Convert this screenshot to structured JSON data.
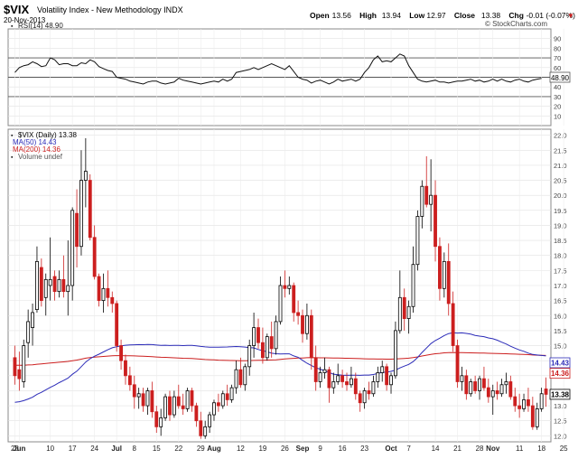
{
  "header": {
    "symbol": "$VIX",
    "description": "Volatility Index - New Methodology  INDX",
    "date": "20-Nov-2013",
    "ohlc": [
      {
        "label": "Open",
        "value": "13.56"
      },
      {
        "label": "High",
        "value": "13.94"
      },
      {
        "label": "Low",
        "value": "12.97"
      },
      {
        "label": "Close",
        "value": "13.38"
      },
      {
        "label": "Chg",
        "value": "-0.01 (-0.07%)"
      }
    ],
    "brand": "© StockCharts.com",
    "down_marker": "▼"
  },
  "rsi_panel": {
    "legend": "RSI(14) 48.90",
    "last_value_label": "48.90"
  },
  "price_panel": {
    "legend": [
      {
        "text": "$VIX (Daily) 13.38",
        "color": "#000000"
      },
      {
        "text": "MA(50) 14.43",
        "color": "#2b2bb8"
      },
      {
        "text": "MA(200) 14.36",
        "color": "#cc1f1f"
      },
      {
        "text": "Volume undef",
        "color": "#555555"
      }
    ],
    "last_close_label": "13.38",
    "ma50_label": "14.43",
    "ma200_label": "14.36"
  },
  "x_ticks": [
    {
      "i": 0,
      "label": "28",
      "bold": false
    },
    {
      "i": 1,
      "label": "Jun",
      "bold": true
    },
    {
      "i": 8,
      "label": "10",
      "bold": false
    },
    {
      "i": 13,
      "label": "17",
      "bold": false
    },
    {
      "i": 18,
      "label": "24",
      "bold": false
    },
    {
      "i": 23,
      "label": "Jul",
      "bold": true
    },
    {
      "i": 27,
      "label": "8",
      "bold": false
    },
    {
      "i": 32,
      "label": "15",
      "bold": false
    },
    {
      "i": 37,
      "label": "22",
      "bold": false
    },
    {
      "i": 42,
      "label": "29",
      "bold": false
    },
    {
      "i": 45,
      "label": "Aug",
      "bold": true
    },
    {
      "i": 51,
      "label": "12",
      "bold": false
    },
    {
      "i": 56,
      "label": "19",
      "bold": false
    },
    {
      "i": 61,
      "label": "26",
      "bold": false
    },
    {
      "i": 65,
      "label": "Sep",
      "bold": true
    },
    {
      "i": 69,
      "label": "9",
      "bold": false
    },
    {
      "i": 74,
      "label": "16",
      "bold": false
    },
    {
      "i": 79,
      "label": "23",
      "bold": false
    },
    {
      "i": 85,
      "label": "Oct",
      "bold": true
    },
    {
      "i": 89,
      "label": "7",
      "bold": false
    },
    {
      "i": 95,
      "label": "14",
      "bold": false
    },
    {
      "i": 100,
      "label": "21",
      "bold": false
    },
    {
      "i": 105,
      "label": "28",
      "bold": false
    },
    {
      "i": 108,
      "label": "Nov",
      "bold": true
    },
    {
      "i": 114,
      "label": "11",
      "bold": false
    },
    {
      "i": 119,
      "label": "18",
      "bold": false
    },
    {
      "i": 124,
      "label": "25",
      "bold": false
    }
  ],
  "chart_data": [
    {
      "type": "line",
      "name": "RSI(14)",
      "ylim": [
        0,
        100
      ],
      "yticks": [
        10,
        20,
        30,
        40,
        50,
        60,
        70,
        80,
        90
      ],
      "reference_lines": [
        30,
        50,
        70
      ],
      "values": [
        55,
        60,
        62,
        63,
        66,
        64,
        61,
        62,
        70,
        68,
        63,
        64,
        64,
        62,
        62,
        65,
        64,
        68,
        66,
        61,
        59,
        57,
        56,
        50,
        49,
        48,
        46,
        45,
        44,
        43,
        45,
        46,
        46,
        44,
        43,
        44,
        45,
        49,
        47,
        46,
        45,
        44,
        43,
        44,
        45,
        46,
        45,
        48,
        46,
        48,
        55,
        56,
        57,
        58,
        60,
        58,
        60,
        62,
        64,
        62,
        60,
        58,
        62,
        56,
        50,
        48,
        47,
        44,
        46,
        47,
        45,
        43,
        45,
        48,
        46,
        47,
        48,
        46,
        48,
        55,
        60,
        68,
        72,
        66,
        67,
        66,
        70,
        74,
        72,
        62,
        55,
        48,
        46,
        45,
        46,
        47,
        45,
        45,
        44,
        45,
        46,
        46,
        47,
        48,
        46,
        47,
        45,
        46,
        48,
        46,
        48,
        46,
        45,
        47,
        48,
        46,
        45,
        47,
        48,
        48.9
      ],
      "last_value": 48.9
    },
    {
      "type": "candlestick",
      "name": "$VIX (Daily)",
      "ylim": [
        11.8,
        22.2
      ],
      "yticks": [
        12.0,
        12.5,
        13.0,
        13.5,
        14.0,
        14.5,
        15.0,
        15.5,
        16.0,
        16.5,
        17.0,
        17.5,
        18.0,
        18.5,
        19.0,
        19.5,
        20.0,
        20.5,
        21.0,
        21.5,
        22.0
      ],
      "grid": true,
      "ohlc": [
        [
          14.6,
          15.0,
          13.7,
          14.0
        ],
        [
          14.2,
          14.8,
          13.5,
          13.9
        ],
        [
          13.8,
          15.2,
          13.6,
          15.0
        ],
        [
          15.1,
          16.2,
          14.6,
          15.8
        ],
        [
          15.6,
          16.4,
          15.0,
          16.1
        ],
        [
          16.2,
          18.3,
          16.1,
          17.8
        ],
        [
          17.6,
          17.9,
          16.3,
          16.5
        ],
        [
          16.6,
          17.4,
          16.0,
          17.2
        ],
        [
          17.0,
          18.6,
          16.5,
          17.2
        ],
        [
          17.3,
          17.5,
          16.5,
          16.8
        ],
        [
          16.8,
          17.5,
          16.6,
          17.2
        ],
        [
          17.2,
          18.0,
          16.6,
          16.8
        ],
        [
          16.8,
          18.5,
          16.0,
          17.0
        ],
        [
          17.0,
          19.6,
          16.5,
          19.5
        ],
        [
          19.4,
          20.2,
          17.6,
          18.3
        ],
        [
          18.3,
          21.5,
          18.0,
          20.5
        ],
        [
          20.5,
          21.9,
          19.6,
          20.8
        ],
        [
          20.5,
          20.7,
          18.5,
          18.6
        ],
        [
          18.6,
          19.0,
          17.2,
          17.3
        ],
        [
          17.3,
          17.4,
          16.3,
          16.5
        ],
        [
          16.5,
          17.4,
          16.1,
          16.9
        ],
        [
          16.9,
          17.5,
          16.3,
          16.6
        ],
        [
          16.6,
          16.8,
          16.1,
          16.4
        ],
        [
          16.4,
          16.5,
          14.8,
          15.0
        ],
        [
          15.0,
          15.2,
          14.2,
          14.5
        ],
        [
          14.5,
          14.7,
          13.7,
          14.0
        ],
        [
          14.0,
          14.3,
          13.5,
          13.7
        ],
        [
          13.7,
          14.0,
          12.9,
          13.3
        ],
        [
          13.3,
          13.6,
          12.9,
          13.4
        ],
        [
          13.4,
          13.6,
          12.8,
          13.0
        ],
        [
          13.0,
          13.6,
          12.7,
          13.5
        ],
        [
          13.5,
          13.8,
          12.6,
          12.8
        ],
        [
          12.8,
          13.0,
          12.1,
          12.3
        ],
        [
          12.3,
          12.9,
          12.0,
          12.6
        ],
        [
          12.6,
          13.4,
          12.5,
          13.3
        ],
        [
          13.3,
          13.5,
          12.5,
          12.7
        ],
        [
          12.7,
          13.5,
          12.6,
          13.3
        ],
        [
          13.3,
          13.7,
          12.9,
          13.0
        ],
        [
          13.0,
          13.4,
          12.7,
          12.9
        ],
        [
          12.9,
          13.6,
          12.8,
          13.5
        ],
        [
          13.5,
          13.6,
          12.8,
          13.0
        ],
        [
          13.0,
          13.1,
          12.3,
          12.5
        ],
        [
          12.5,
          12.8,
          11.9,
          12.0
        ],
        [
          12.0,
          12.5,
          11.9,
          12.3
        ],
        [
          12.3,
          12.8,
          12.1,
          12.7
        ],
        [
          12.7,
          13.2,
          12.5,
          13.1
        ],
        [
          13.1,
          13.4,
          12.8,
          13.0
        ],
        [
          13.0,
          13.5,
          12.9,
          13.4
        ],
        [
          13.4,
          13.7,
          13.0,
          13.2
        ],
        [
          13.2,
          13.7,
          13.1,
          13.6
        ],
        [
          13.6,
          14.5,
          13.4,
          14.2
        ],
        [
          14.2,
          14.6,
          13.6,
          13.7
        ],
        [
          13.7,
          14.4,
          13.5,
          14.3
        ],
        [
          14.3,
          15.2,
          14.0,
          15.0
        ],
        [
          15.0,
          16.1,
          14.6,
          15.6
        ],
        [
          15.6,
          15.9,
          14.9,
          15.1
        ],
        [
          15.1,
          15.6,
          14.4,
          14.6
        ],
        [
          14.6,
          15.4,
          14.5,
          15.3
        ],
        [
          15.3,
          15.8,
          14.6,
          14.9
        ],
        [
          14.9,
          16.0,
          14.7,
          15.8
        ],
        [
          15.8,
          17.3,
          15.7,
          17.0
        ],
        [
          17.0,
          17.5,
          16.6,
          16.9
        ],
        [
          16.9,
          17.3,
          16.7,
          17.0
        ],
        [
          17.0,
          17.1,
          15.8,
          16.1
        ],
        [
          16.1,
          16.5,
          15.7,
          16.0
        ],
        [
          16.0,
          16.2,
          15.1,
          15.4
        ],
        [
          15.4,
          16.4,
          15.2,
          16.0
        ],
        [
          16.0,
          16.2,
          14.2,
          14.6
        ],
        [
          14.6,
          15.0,
          13.5,
          13.8
        ],
        [
          13.8,
          14.3,
          13.6,
          14.1
        ],
        [
          14.1,
          14.6,
          13.9,
          14.2
        ],
        [
          14.2,
          14.3,
          13.1,
          13.6
        ],
        [
          13.6,
          14.1,
          13.4,
          13.8
        ],
        [
          13.8,
          14.4,
          13.7,
          14.0
        ],
        [
          14.0,
          14.2,
          13.6,
          13.8
        ],
        [
          13.8,
          14.1,
          13.5,
          13.7
        ],
        [
          13.7,
          14.3,
          13.6,
          13.9
        ],
        [
          13.9,
          14.1,
          13.2,
          13.4
        ],
        [
          13.4,
          13.5,
          12.8,
          13.1
        ],
        [
          13.1,
          13.6,
          12.9,
          13.5
        ],
        [
          13.5,
          13.8,
          13.2,
          13.4
        ],
        [
          13.4,
          14.0,
          13.3,
          13.8
        ],
        [
          13.8,
          14.3,
          13.6,
          14.1
        ],
        [
          14.1,
          14.5,
          13.8,
          14.3
        ],
        [
          14.3,
          14.4,
          13.5,
          13.7
        ],
        [
          13.7,
          14.1,
          13.4,
          14.0
        ],
        [
          14.0,
          15.8,
          13.9,
          15.5
        ],
        [
          15.5,
          17.5,
          15.4,
          16.6
        ],
        [
          16.6,
          16.9,
          15.5,
          15.9
        ],
        [
          15.9,
          16.5,
          15.4,
          16.3
        ],
        [
          16.3,
          18.3,
          16.1,
          17.7
        ],
        [
          17.7,
          19.5,
          17.5,
          19.3
        ],
        [
          19.3,
          20.5,
          18.9,
          20.3
        ],
        [
          20.3,
          21.3,
          19.6,
          19.7
        ],
        [
          19.7,
          21.2,
          18.8,
          20.0
        ],
        [
          20.0,
          20.5,
          17.8,
          18.3
        ],
        [
          18.3,
          18.6,
          16.5,
          16.9
        ],
        [
          16.9,
          18.1,
          16.6,
          17.8
        ],
        [
          17.8,
          18.4,
          16.0,
          16.4
        ],
        [
          16.4,
          16.8,
          14.8,
          15.0
        ],
        [
          15.0,
          15.2,
          13.6,
          13.8
        ],
        [
          13.8,
          14.3,
          13.5,
          14.0
        ],
        [
          14.0,
          14.2,
          13.2,
          13.4
        ],
        [
          13.4,
          13.9,
          13.3,
          13.8
        ],
        [
          13.8,
          14.0,
          13.4,
          13.5
        ],
        [
          13.5,
          14.0,
          13.2,
          13.9
        ],
        [
          13.9,
          14.3,
          13.5,
          13.6
        ],
        [
          13.6,
          13.9,
          13.1,
          13.3
        ],
        [
          13.3,
          13.7,
          12.7,
          13.5
        ],
        [
          13.5,
          13.8,
          13.2,
          13.4
        ],
        [
          13.4,
          13.9,
          13.3,
          13.7
        ],
        [
          13.7,
          14.1,
          13.4,
          13.8
        ],
        [
          13.8,
          14.0,
          13.2,
          13.3
        ],
        [
          13.3,
          13.6,
          12.8,
          13.0
        ],
        [
          13.0,
          13.4,
          12.6,
          12.9
        ],
        [
          12.9,
          13.4,
          12.8,
          13.2
        ],
        [
          13.2,
          13.6,
          12.8,
          13.0
        ],
        [
          13.0,
          13.3,
          12.2,
          12.3
        ],
        [
          12.3,
          13.1,
          12.2,
          12.9
        ],
        [
          12.9,
          13.6,
          12.8,
          13.4
        ],
        [
          13.56,
          13.94,
          12.97,
          13.38
        ]
      ]
    }
  ]
}
